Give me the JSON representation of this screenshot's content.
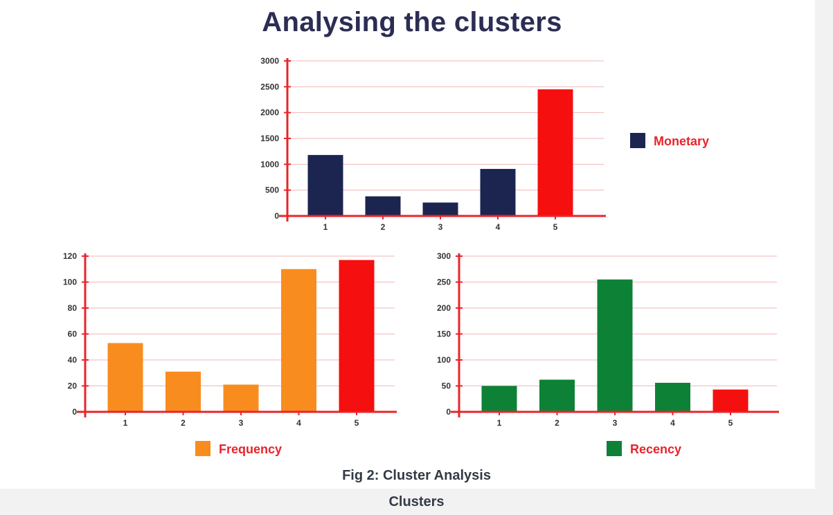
{
  "title": "Analysing the clusters",
  "caption": "Fig 2: Cluster Analysis",
  "footer": "Clusters",
  "chart_data": [
    {
      "id": "monetary",
      "type": "bar",
      "categories": [
        "1",
        "2",
        "3",
        "4",
        "5"
      ],
      "series": [
        {
          "name": "Monetary",
          "values": [
            1180,
            380,
            260,
            910,
            2450
          ]
        }
      ],
      "bar_colors": [
        "#1c2550",
        "#1c2550",
        "#1c2550",
        "#1c2550",
        "#f50f0f"
      ],
      "legend_color": "#1c2550",
      "ylim": [
        0,
        3000
      ],
      "yticks": [
        0,
        500,
        1000,
        1500,
        2000,
        2500,
        3000
      ],
      "grid": true,
      "legend_position": "right"
    },
    {
      "id": "frequency",
      "type": "bar",
      "categories": [
        "1",
        "2",
        "3",
        "4",
        "5"
      ],
      "series": [
        {
          "name": "Frequency",
          "values": [
            53,
            31,
            21,
            110,
            117
          ]
        }
      ],
      "bar_colors": [
        "#f98c1f",
        "#f98c1f",
        "#f98c1f",
        "#f98c1f",
        "#f50f0f"
      ],
      "legend_color": "#f98c1f",
      "ylim": [
        0,
        120
      ],
      "yticks": [
        0,
        20,
        40,
        60,
        80,
        100,
        120
      ],
      "grid": true,
      "legend_position": "bottom"
    },
    {
      "id": "recency",
      "type": "bar",
      "categories": [
        "1",
        "2",
        "3",
        "4",
        "5"
      ],
      "series": [
        {
          "name": "Recency",
          "values": [
            50,
            62,
            255,
            56,
            43
          ]
        }
      ],
      "bar_colors": [
        "#0d8236",
        "#0d8236",
        "#0d8236",
        "#0d8236",
        "#f50f0f"
      ],
      "legend_color": "#0d8236",
      "ylim": [
        0,
        300
      ],
      "yticks": [
        0,
        50,
        100,
        150,
        200,
        250,
        300
      ],
      "grid": true,
      "legend_position": "bottom"
    }
  ]
}
